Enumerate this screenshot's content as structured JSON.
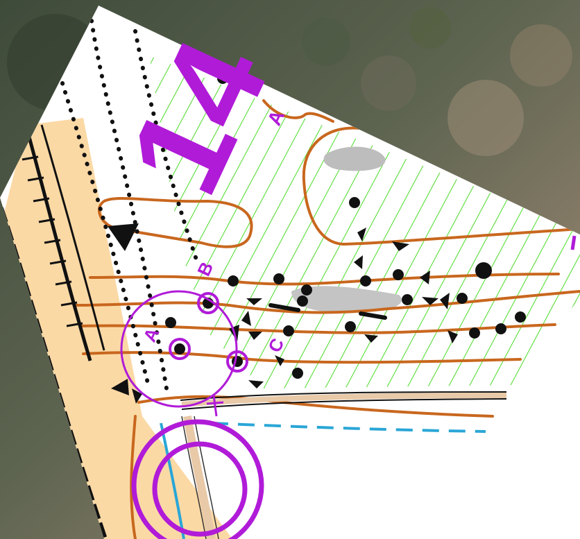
{
  "map": {
    "control_number": "14",
    "control_code_letters": [
      "A",
      "B",
      "A",
      "C"
    ],
    "colors": {
      "course_overprint": "#b01bd8",
      "contour": "#c8671e",
      "vegetation_stripes": "#55dd33",
      "open_land": "#fbd9a5",
      "rock_gray": "#bdbdbd",
      "water_blue": "#2aa6d6",
      "track_black": "#111111",
      "photo_forest": "#5a6650",
      "photo_rock": "#8a7a66"
    },
    "icons": [
      "start-triangle-icon",
      "finish-circle-icon",
      "control-circle-icon"
    ]
  }
}
